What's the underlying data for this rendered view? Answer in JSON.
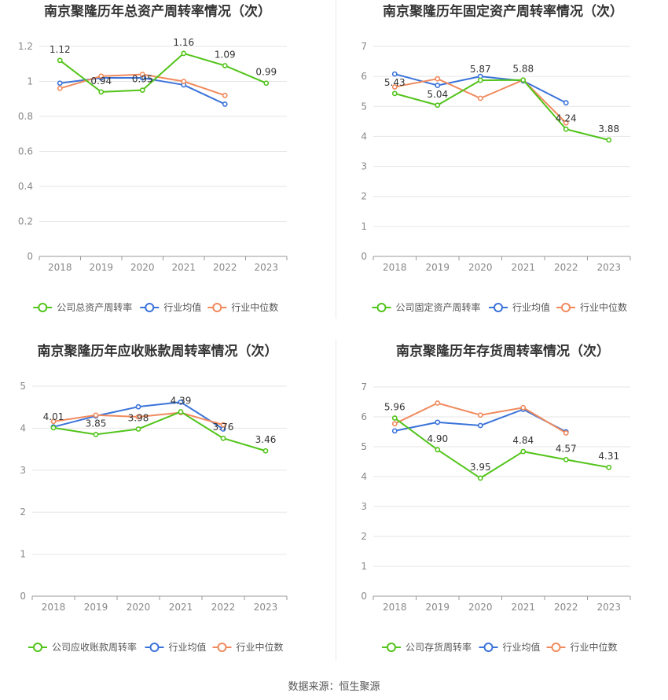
{
  "colors": {
    "company": "#52c41a",
    "industry_avg": "#3b73d9",
    "industry_median": "#f08a5d",
    "grid": "#e6e6e6",
    "axis_text": "#888888",
    "title": "#333333"
  },
  "chart_data": [
    {
      "type": "line",
      "title": "南京聚隆历年总资产周转率情况（次）",
      "categories": [
        "2018",
        "2019",
        "2020",
        "2021",
        "2022",
        "2023"
      ],
      "ylim": [
        0,
        1.2
      ],
      "yticks": [
        "0",
        "0.2",
        "0.4",
        "0.6",
        "0.8",
        "1",
        "1.2"
      ],
      "series": [
        {
          "name": "公司总资产周转率",
          "key": "company",
          "values": [
            1.12,
            0.94,
            0.95,
            1.16,
            1.09,
            0.99
          ],
          "labels": [
            "1.12",
            "0.94",
            "0.95",
            "1.16",
            "1.09",
            "0.99"
          ]
        },
        {
          "name": "行业均值",
          "key": "industry_avg",
          "values": [
            0.99,
            1.02,
            1.02,
            0.98,
            0.87,
            null
          ]
        },
        {
          "name": "行业中位数",
          "key": "industry_median",
          "values": [
            0.96,
            1.03,
            1.04,
            1.0,
            0.92,
            null
          ]
        }
      ]
    },
    {
      "type": "line",
      "title": "南京聚隆历年固定资产周转率情况（次）",
      "categories": [
        "2018",
        "2019",
        "2020",
        "2021",
        "2022",
        "2023"
      ],
      "ylim": [
        0,
        7
      ],
      "yticks": [
        "0",
        "1",
        "2",
        "3",
        "4",
        "5",
        "6",
        "7"
      ],
      "series": [
        {
          "name": "公司固定资产周转率",
          "key": "company",
          "values": [
            5.43,
            5.04,
            5.87,
            5.88,
            4.24,
            3.88
          ],
          "labels": [
            "5.43",
            "5.04",
            "5.87",
            "5.88",
            "4.24",
            "3.88"
          ]
        },
        {
          "name": "行业均值",
          "key": "industry_avg",
          "values": [
            6.08,
            5.7,
            6.0,
            5.85,
            5.12,
            null
          ]
        },
        {
          "name": "行业中位数",
          "key": "industry_median",
          "values": [
            5.65,
            5.92,
            5.27,
            5.88,
            4.45,
            null
          ]
        }
      ]
    },
    {
      "type": "line",
      "title": "南京聚隆历年应收账款周转率情况（次）",
      "categories": [
        "2018",
        "2019",
        "2020",
        "2021",
        "2022",
        "2023"
      ],
      "ylim": [
        0,
        5
      ],
      "yticks": [
        "0",
        "1",
        "2",
        "3",
        "4",
        "5"
      ],
      "series": [
        {
          "name": "公司应收账款周转率",
          "key": "company",
          "values": [
            4.01,
            3.85,
            3.98,
            4.39,
            3.76,
            3.46
          ],
          "labels": [
            "4.01",
            "3.85",
            "3.98",
            "4.39",
            "3.76",
            "3.46"
          ]
        },
        {
          "name": "行业均值",
          "key": "industry_avg",
          "values": [
            4.03,
            4.29,
            4.51,
            4.62,
            3.98,
            null
          ]
        },
        {
          "name": "行业中位数",
          "key": "industry_median",
          "values": [
            4.16,
            4.31,
            4.27,
            4.37,
            4.08,
            null
          ]
        }
      ]
    },
    {
      "type": "line",
      "title": "南京聚隆历年存货周转率情况（次）",
      "categories": [
        "2018",
        "2019",
        "2020",
        "2021",
        "2022",
        "2023"
      ],
      "ylim": [
        0,
        7
      ],
      "yticks": [
        "0",
        "1",
        "2",
        "3",
        "4",
        "5",
        "6",
        "7"
      ],
      "series": [
        {
          "name": "公司存货周转率",
          "key": "company",
          "values": [
            5.96,
            4.9,
            3.95,
            4.84,
            4.57,
            4.31
          ],
          "labels": [
            "5.96",
            "4.90",
            "3.95",
            "4.84",
            "4.57",
            "4.31"
          ]
        },
        {
          "name": "行业均值",
          "key": "industry_avg",
          "values": [
            5.53,
            5.82,
            5.71,
            6.25,
            5.5,
            null
          ]
        },
        {
          "name": "行业中位数",
          "key": "industry_median",
          "values": [
            5.77,
            6.46,
            6.06,
            6.31,
            5.46,
            null
          ]
        }
      ]
    }
  ],
  "footer": {
    "source": "数据来源：恒生聚源"
  }
}
